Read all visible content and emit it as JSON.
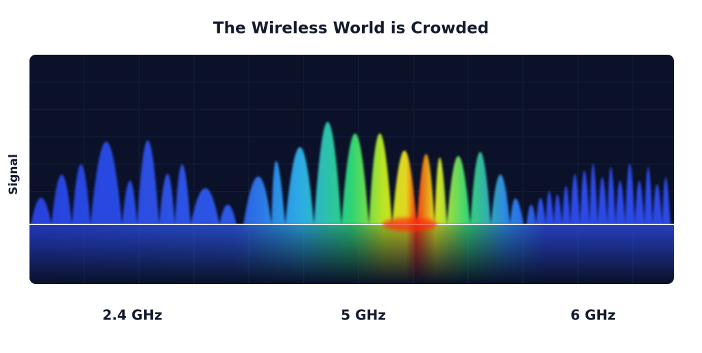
{
  "title": "The Wireless World is Crowded",
  "y_axis_label": "Signal",
  "bands": [
    "2.4 GHz",
    "5 GHz",
    "6 GHz"
  ]
}
